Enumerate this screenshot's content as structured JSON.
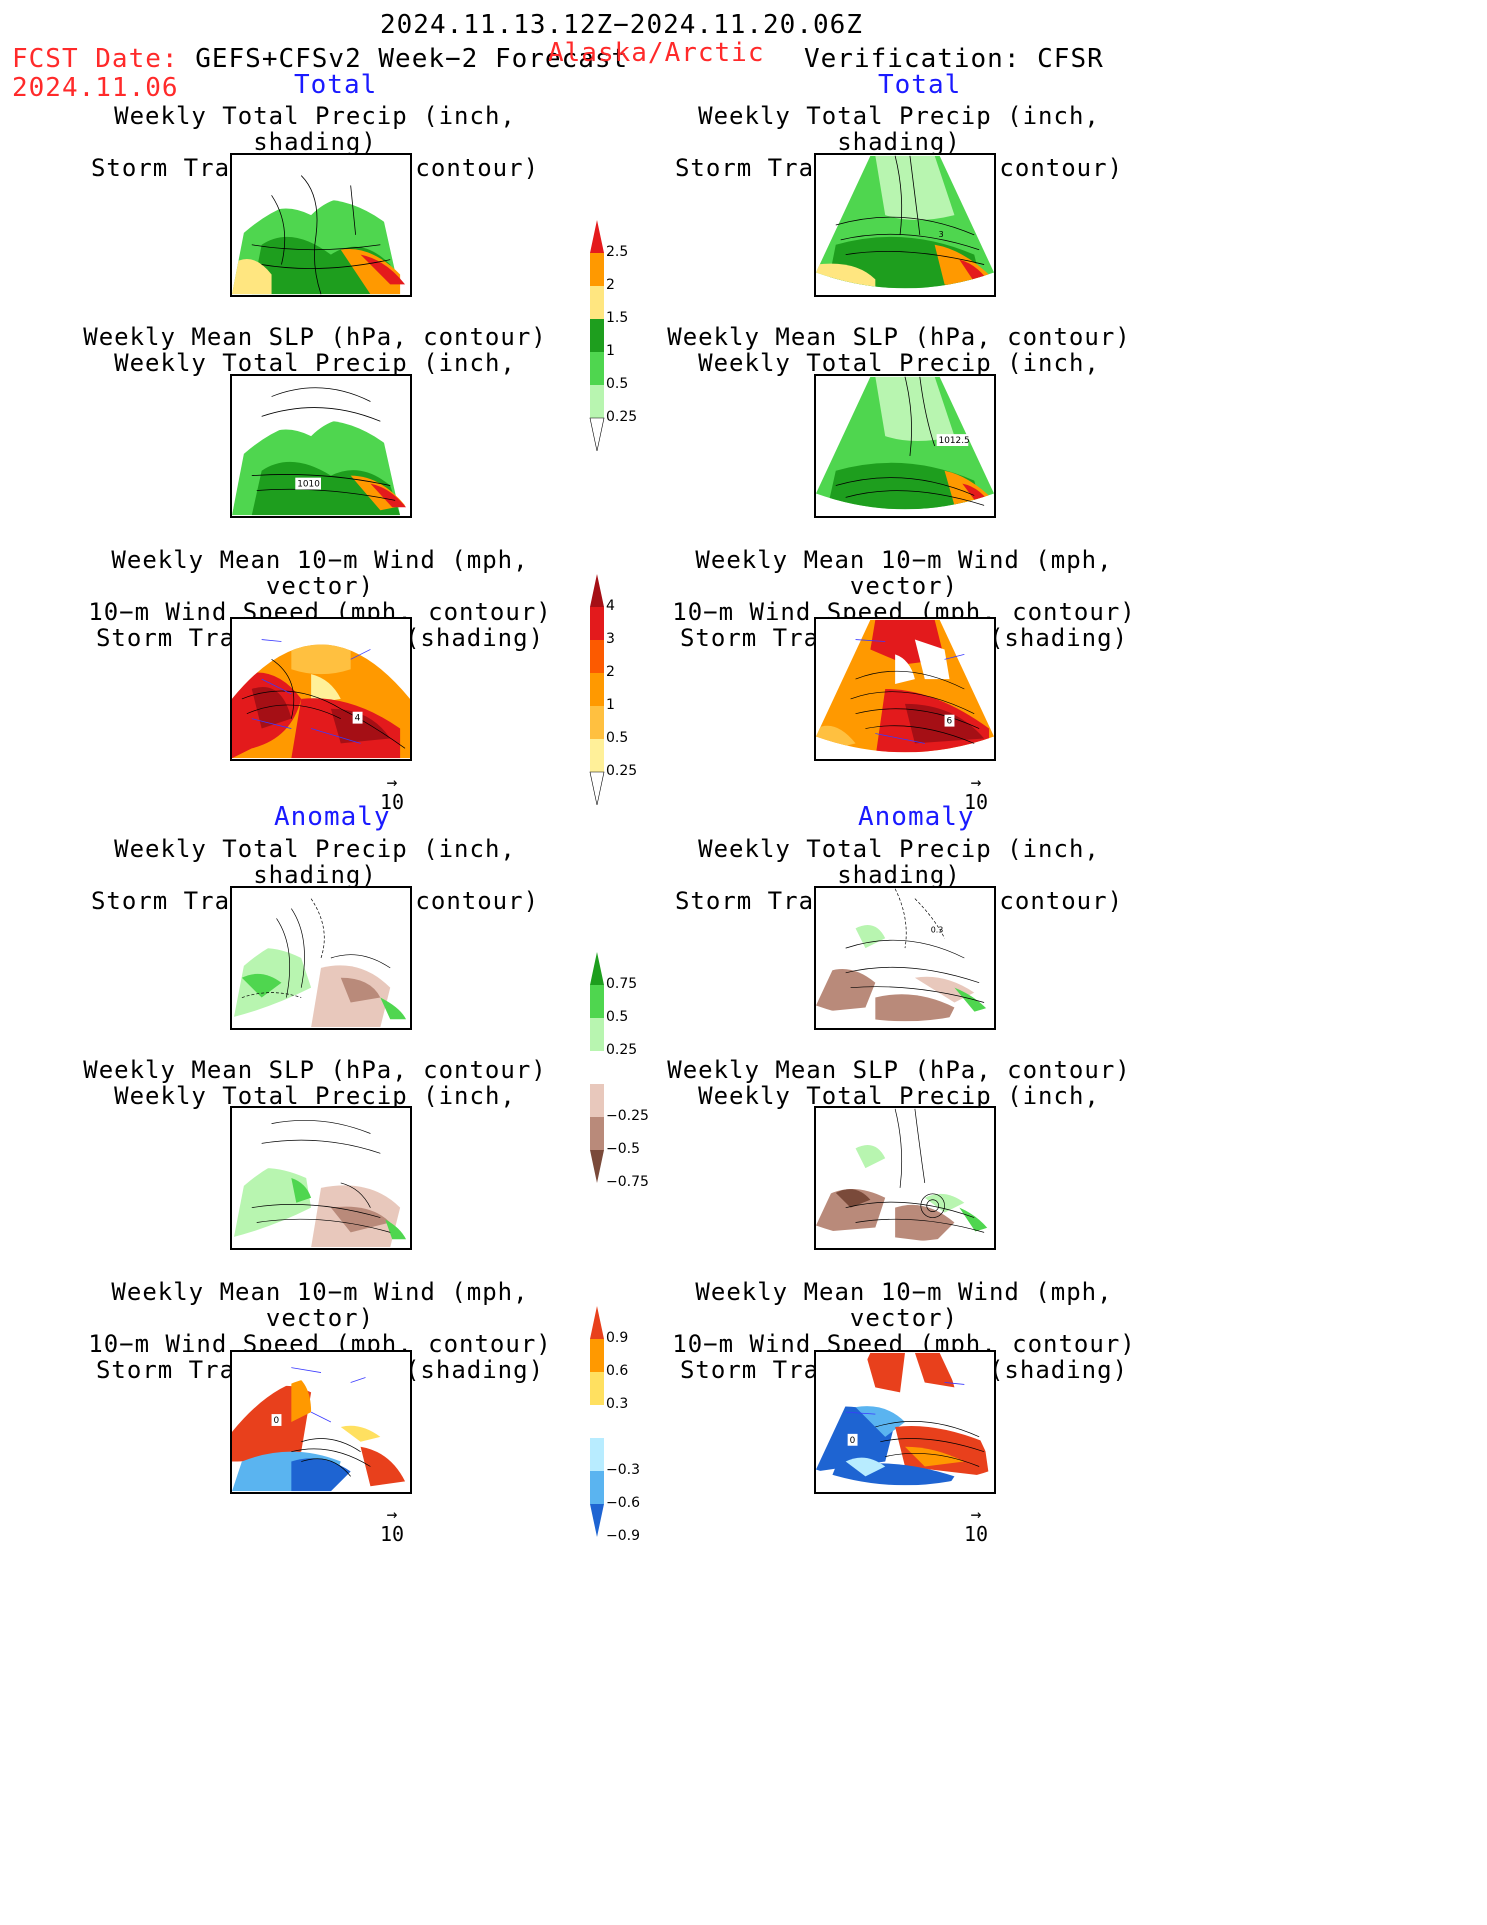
{
  "header": {
    "period": "2024.11.13.12Z−2024.11.20.06Z",
    "fcst_label": "FCST Date:",
    "fcst_system": "GEFS+CFSv2 Week−2 Forecast",
    "fcst_date": "2024.11.06",
    "region": "Alaska/Arctic",
    "verification": "Verification: CFSR"
  },
  "sections": {
    "total": "Total",
    "anomaly": "Anomaly"
  },
  "panel_titles": {
    "precip_storm": [
      "Weekly Total Precip (inch, shading)",
      "Storm Track Density (contour)"
    ],
    "slp_precip": [
      "Weekly Mean SLP (hPa, contour)",
      "Weekly Total Precip (inch, shading)"
    ],
    "wind_storm": [
      "Weekly Mean 10−m Wind (mph, vector)",
      "10−m Wind Speed (mph, contour)",
      "Storm Track Density (shading)"
    ]
  },
  "contour_labels": {
    "fc_slp_total": "1010",
    "obs_storm_total": "3",
    "obs_slp_total": "1012.5",
    "fc_wind_total": "4",
    "obs_wind_total": "6",
    "obs_storm_anom": "0.3",
    "fc_wind_anom": "0",
    "obs_wind_anom": "0"
  },
  "vector_ref": "10",
  "colorbars": {
    "precip_total": {
      "labels": [
        "2.5",
        "2",
        "1.5",
        "1",
        "0.5",
        "0.25"
      ],
      "colors": [
        "#e41a1c",
        "#ff9900",
        "#ffe680",
        "#1e9e1e",
        "#4fd64f",
        "#b8f5b0"
      ]
    },
    "storm_total": {
      "labels": [
        "4",
        "3",
        "2",
        "1",
        "0.5",
        "0.25"
      ],
      "colors": [
        "#a50f15",
        "#e31a1c",
        "#fc5a00",
        "#ff9900",
        "#ffc040",
        "#fff099"
      ]
    },
    "precip_anom": {
      "labels": [
        "0.75",
        "0.5",
        "0.25",
        "−0.25",
        "−0.5",
        "−0.75"
      ],
      "colors_pos": [
        "#1e9e1e",
        "#4fd64f",
        "#b8f5b0"
      ],
      "colors_neg": [
        "#e8c8bc",
        "#b98a7a",
        "#7a4a3a"
      ]
    },
    "storm_anom": {
      "labels": [
        "0.9",
        "0.6",
        "0.3",
        "−0.3",
        "−0.6",
        "−0.9"
      ],
      "colors_pos": [
        "#e8401c",
        "#ff9900",
        "#ffe060"
      ],
      "colors_neg": [
        "#b8ecff",
        "#5ab4f0",
        "#1e64d2"
      ]
    }
  }
}
